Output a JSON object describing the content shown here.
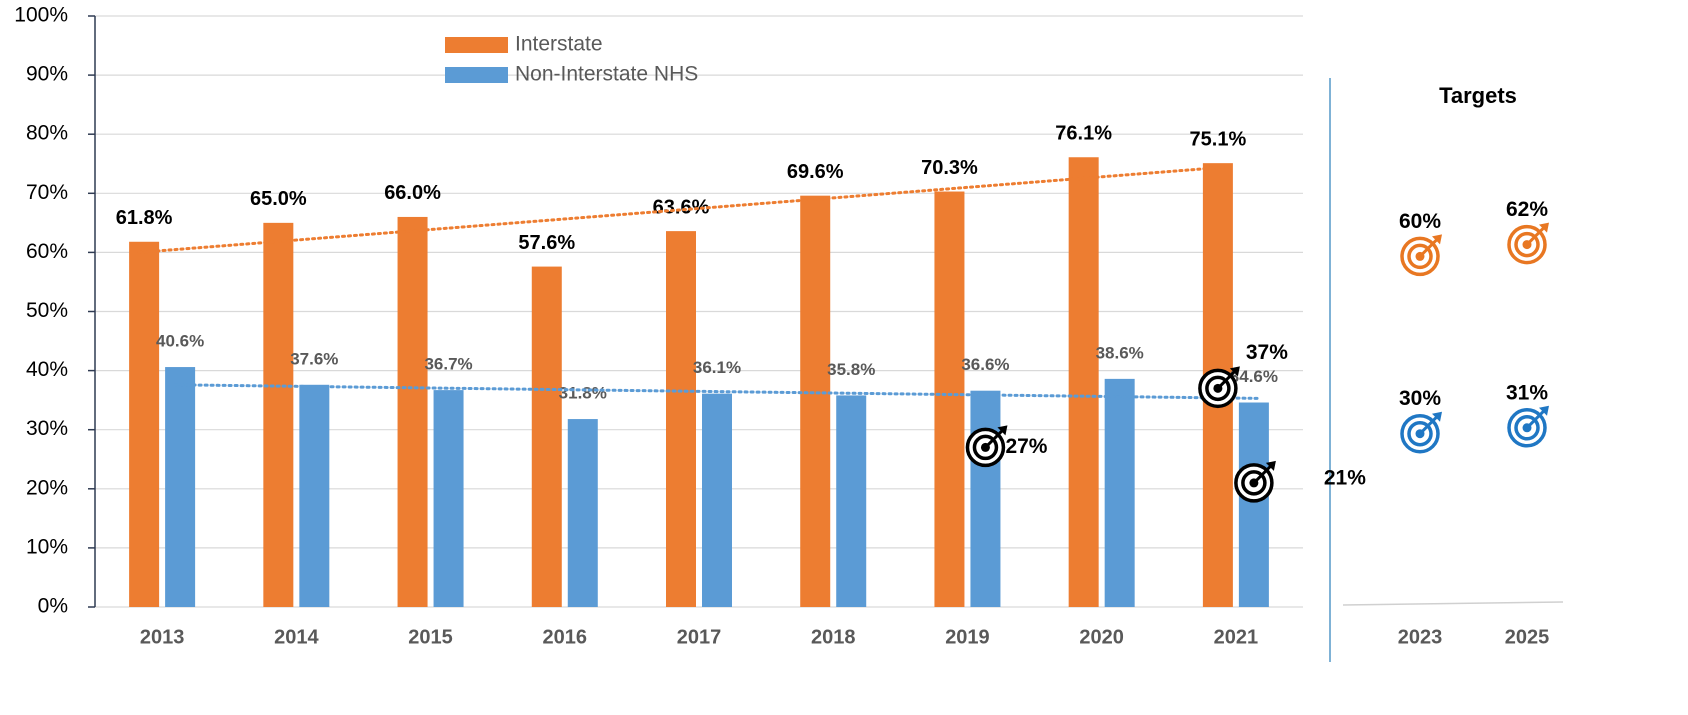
{
  "chart_data": {
    "type": "bar",
    "categories": [
      "2013",
      "2014",
      "2015",
      "2016",
      "2017",
      "2018",
      "2019",
      "2020",
      "2021"
    ],
    "series": [
      {
        "name": "Interstate",
        "color": "#ed7d31",
        "values": [
          61.8,
          65.0,
          66.0,
          57.6,
          63.6,
          69.6,
          70.3,
          76.1,
          75.1
        ],
        "value_labels": [
          "61.8%",
          "65.0%",
          "66.0%",
          "57.6%",
          "63.6%",
          "69.6%",
          "70.3%",
          "76.1%",
          "75.1%"
        ],
        "trend": [
          60.0,
          74.4
        ]
      },
      {
        "name": "Non-Interstate NHS",
        "color": "#5b9bd5",
        "values": [
          40.6,
          37.6,
          36.7,
          31.8,
          36.1,
          35.8,
          36.6,
          38.6,
          34.6
        ],
        "value_labels": [
          "40.6%",
          "37.6%",
          "36.7%",
          "31.8%",
          "36.1%",
          "35.8%",
          "36.6%",
          "38.6%",
          "34.6%"
        ],
        "trend": [
          37.6,
          35.3
        ]
      }
    ],
    "ylim": [
      0,
      100
    ],
    "yticks": [
      {
        "value": 0,
        "label": "0%"
      },
      {
        "value": 10,
        "label": "10%"
      },
      {
        "value": 20,
        "label": "20%"
      },
      {
        "value": 30,
        "label": "30%"
      },
      {
        "value": 40,
        "label": "40%"
      },
      {
        "value": 50,
        "label": "50%"
      },
      {
        "value": 60,
        "label": "60%"
      },
      {
        "value": 70,
        "label": "70%"
      },
      {
        "value": 80,
        "label": "80%"
      },
      {
        "value": 90,
        "label": "90%"
      },
      {
        "value": 100,
        "label": "100%"
      }
    ],
    "grid": true,
    "legend": "top",
    "annotations": [
      {
        "category": 6,
        "series": 1,
        "value": 27,
        "label": "27%"
      },
      {
        "category": 8,
        "series": 0,
        "value": 37,
        "label": "37%"
      },
      {
        "category": 8,
        "series": 1,
        "value": 21,
        "label": "21%"
      }
    ],
    "targets": {
      "title": "Targets",
      "categories": [
        "2023",
        "2025"
      ],
      "series": [
        {
          "color": "#e87722",
          "values": [
            60,
            62
          ],
          "value_labels": [
            "60%",
            "62%"
          ]
        },
        {
          "color": "#1f77c4",
          "values": [
            30,
            31
          ],
          "value_labels": [
            "30%",
            "31%"
          ]
        }
      ]
    }
  }
}
